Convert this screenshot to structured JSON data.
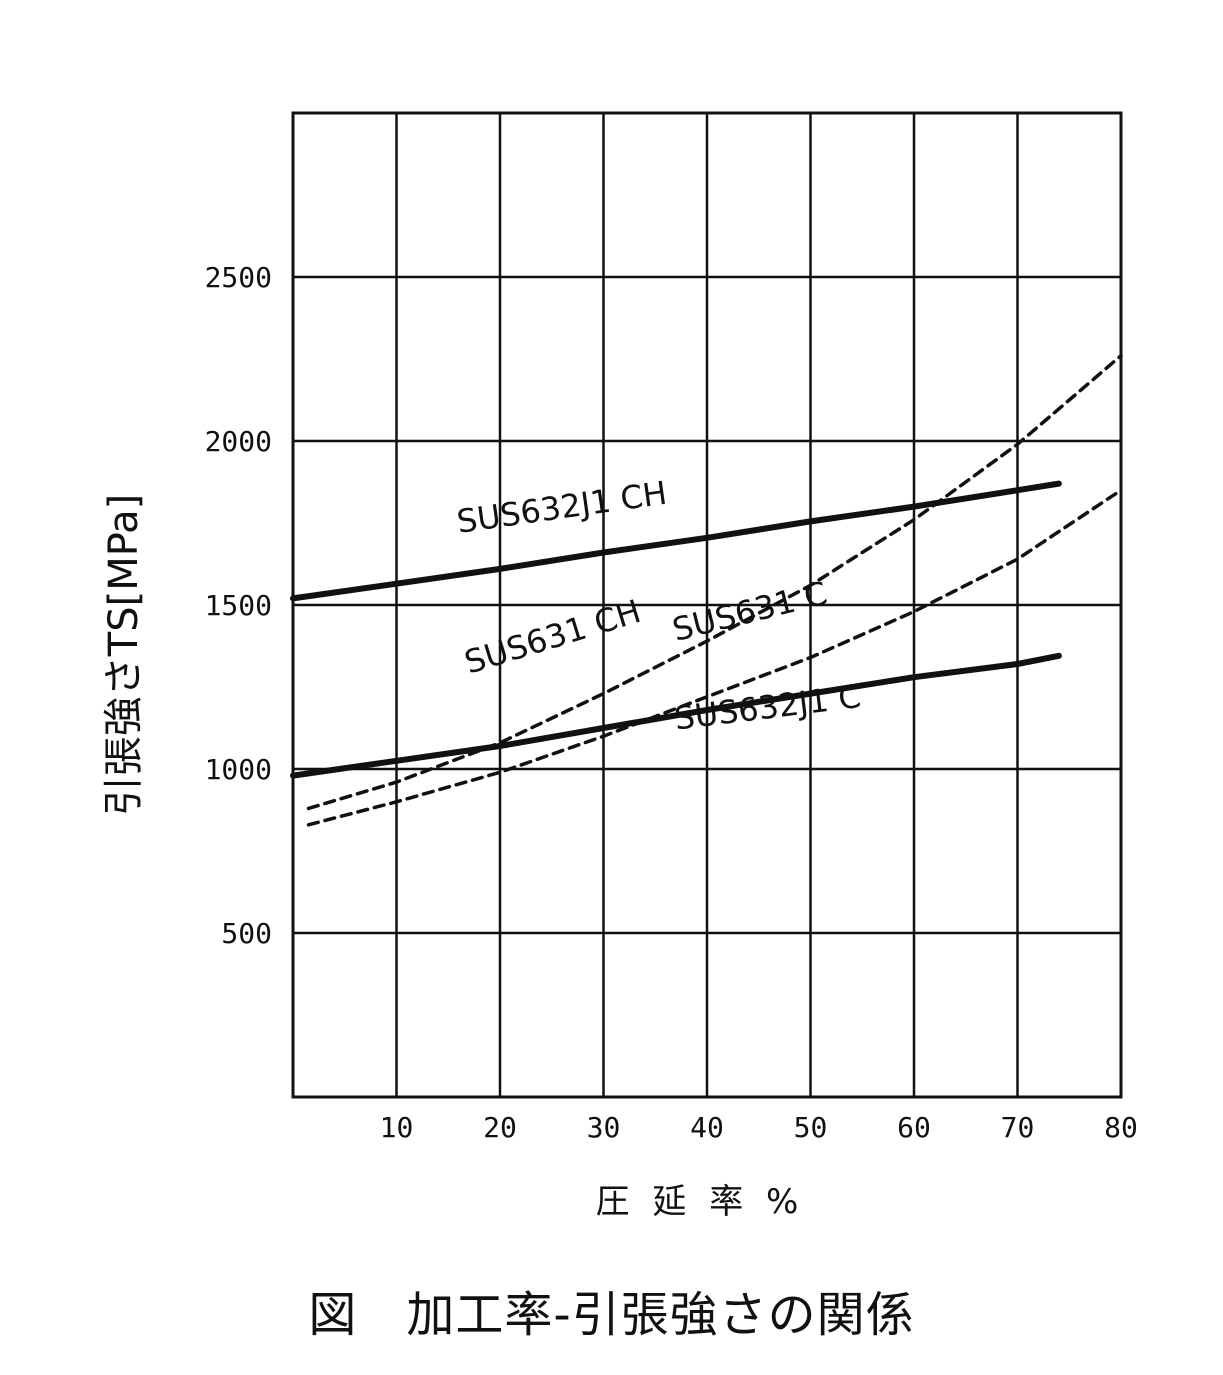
{
  "chart_data": {
    "type": "line",
    "xlabel": "圧 延 率 %",
    "ylabel": "引張強さTS[MPa]",
    "xlim": [
      0,
      80
    ],
    "ylim": [
      0,
      3000
    ],
    "xticks": [
      10,
      20,
      30,
      40,
      50,
      60,
      70,
      80
    ],
    "yticks": [
      500,
      1000,
      1500,
      2000,
      2500
    ],
    "grid": true,
    "series": [
      {
        "name": "SUS632J1 CH",
        "style": "solid",
        "x": [
          0,
          10,
          20,
          30,
          40,
          50,
          60,
          70,
          74
        ],
        "y": [
          1520,
          1565,
          1610,
          1660,
          1705,
          1755,
          1800,
          1850,
          1870
        ]
      },
      {
        "name": "SUS631 CH",
        "style": "dashed",
        "x": [
          1.5,
          10,
          20,
          30,
          40,
          50,
          60,
          70,
          80
        ],
        "y": [
          880,
          960,
          1080,
          1230,
          1390,
          1560,
          1760,
          1990,
          2260
        ]
      },
      {
        "name": "SUS631 C",
        "style": "dashed",
        "x": [
          1.5,
          10,
          20,
          30,
          40,
          50,
          60,
          70,
          80
        ],
        "y": [
          830,
          900,
          990,
          1100,
          1220,
          1340,
          1480,
          1640,
          1850
        ]
      },
      {
        "name": "SUS632J1 C",
        "style": "solid",
        "x": [
          0,
          10,
          20,
          30,
          40,
          50,
          60,
          70,
          74
        ],
        "y": [
          980,
          1025,
          1070,
          1125,
          1180,
          1230,
          1280,
          1320,
          1345
        ]
      }
    ]
  },
  "caption": "図　加工率-引張強さの関係"
}
